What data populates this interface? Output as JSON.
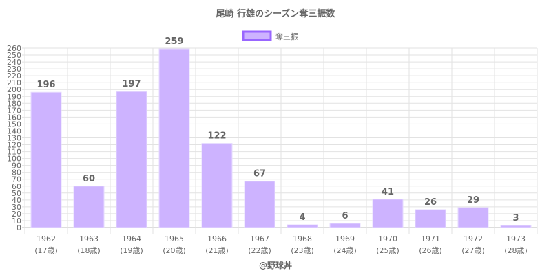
{
  "chart_data": {
    "type": "bar",
    "title": "尾崎 行雄のシーズン奪三振数",
    "legend": {
      "label": "奪三振",
      "position": "top"
    },
    "categories": [
      "1962",
      "1963",
      "1964",
      "1965",
      "1966",
      "1967",
      "1968",
      "1969",
      "1970",
      "1971",
      "1972",
      "1973"
    ],
    "sublabels": [
      "(17歳)",
      "(18歳)",
      "(19歳)",
      "(20歳)",
      "(21歳)",
      "(22歳)",
      "(23歳)",
      "(24歳)",
      "(25歳)",
      "(26歳)",
      "(27歳)",
      "(28歳)"
    ],
    "series": [
      {
        "name": "奪三振",
        "values": [
          196,
          60,
          197,
          259,
          122,
          67,
          4,
          6,
          41,
          26,
          29,
          3
        ]
      }
    ],
    "ylim": [
      0,
      260
    ],
    "ystep": 10,
    "grid": true,
    "colors": {
      "fill": "#cdb3ff",
      "stroke": "#9966ff"
    },
    "credit": "@野球丼"
  }
}
